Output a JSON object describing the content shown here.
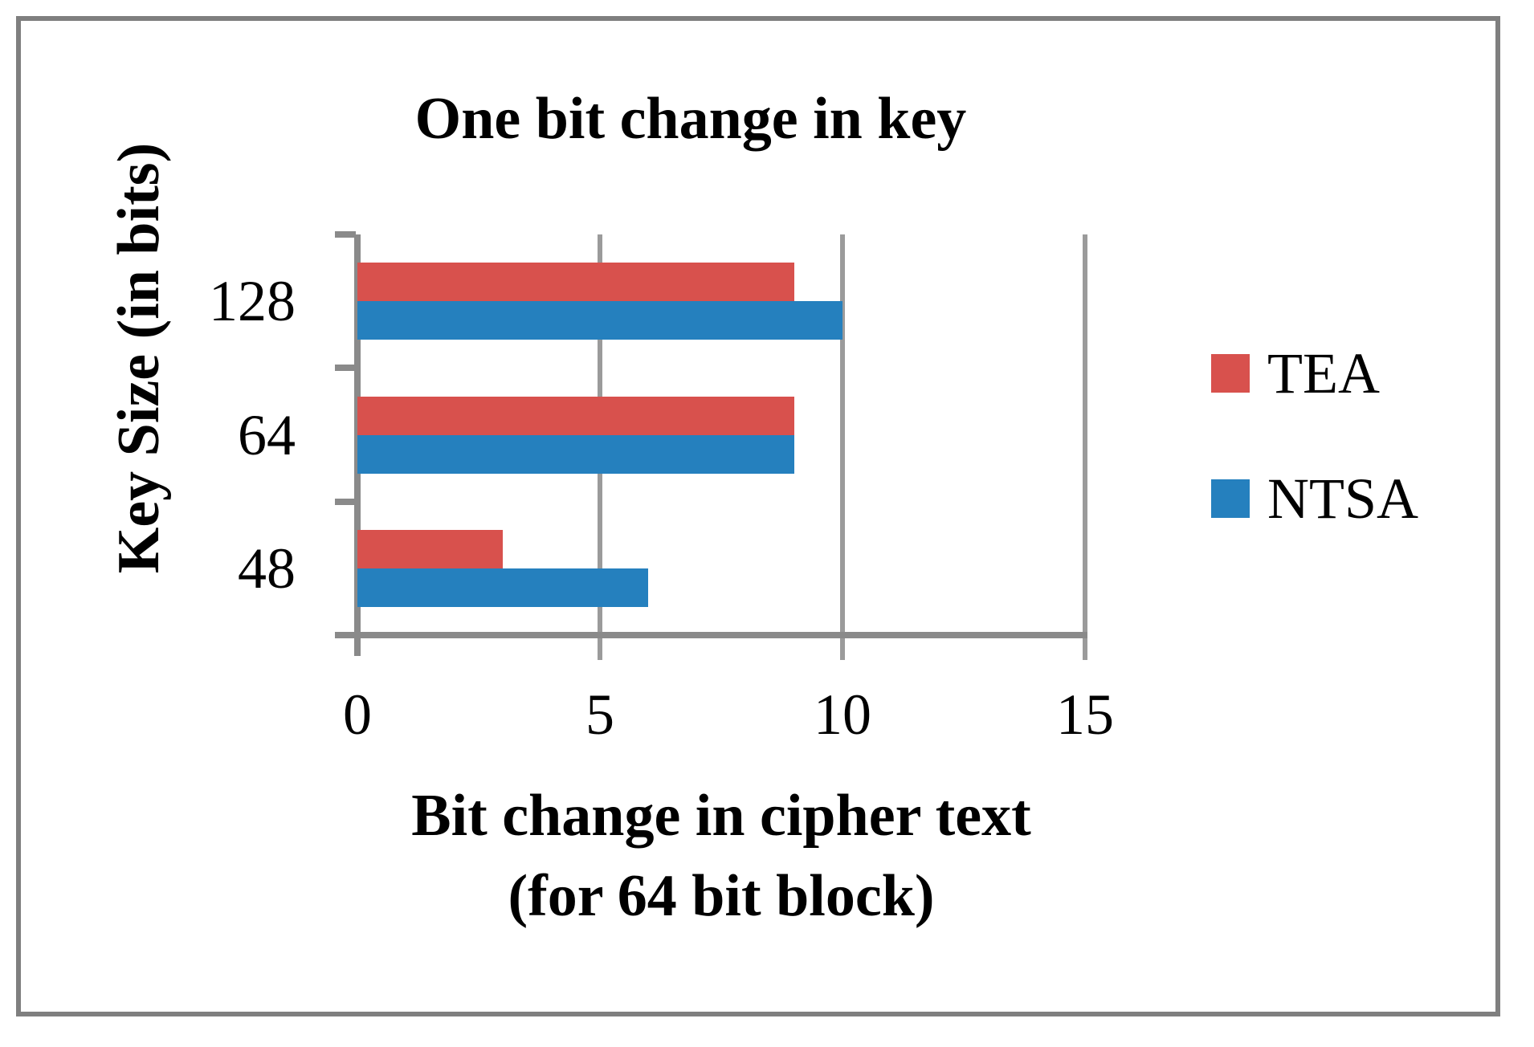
{
  "chart_data": {
    "type": "bar",
    "orientation": "horizontal",
    "title": "One bit change in key",
    "ylabel": "Key Size (in bits)",
    "xlabel": "Bit change in cipher text (for 64 bit block)",
    "xlabel_lines": [
      "Bit change in cipher text",
      "(for 64 bit block)"
    ],
    "categories": [
      "128",
      "64",
      "48"
    ],
    "series": [
      {
        "name": "TEA",
        "color": "#d8514d",
        "values": [
          9,
          9,
          3
        ]
      },
      {
        "name": "NTSA",
        "color": "#2580be",
        "values": [
          10,
          9,
          6
        ]
      }
    ],
    "xlim": [
      0,
      15
    ],
    "xticks": [
      "0",
      "5",
      "10",
      "15"
    ],
    "grid": true,
    "legend_position": "right"
  },
  "styles": {
    "background": "#ffffff",
    "frame_border_color": "#7f7f7f",
    "axis_color": "#8a8a8a",
    "gridline_color": "#9b9b9b",
    "text_color": "#000000"
  }
}
